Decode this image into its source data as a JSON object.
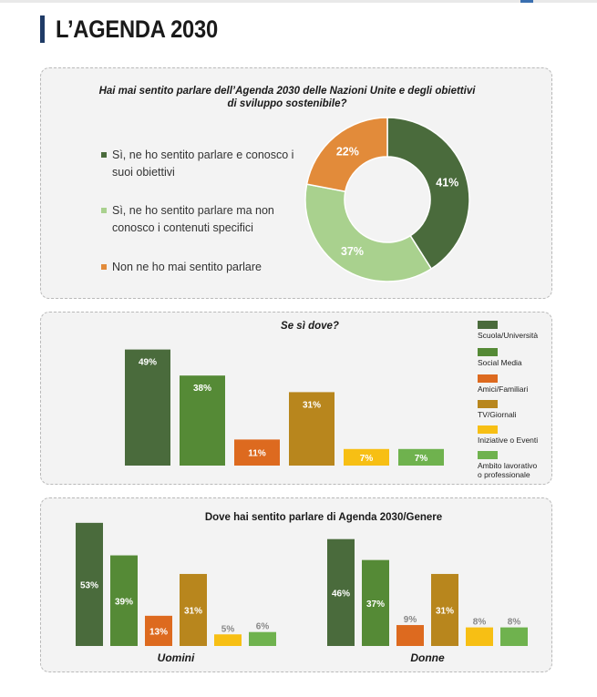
{
  "page_title": "L’AGENDA 2030",
  "colors": {
    "dark_green": "#4a6b3c",
    "green": "#558a36",
    "orange": "#dd6a1f",
    "gold": "#b8861d",
    "yellow": "#f7bf14",
    "light_green": "#6fb24e",
    "donut_dark": "#4a6b3c",
    "donut_light": "#a9d18e",
    "donut_orange": "#e28b3a"
  },
  "chart_data": [
    {
      "type": "pie",
      "title": "Hai mai sentito parlare dell’Agenda 2030 delle Nazioni Unite e degli obiettivi di sviluppo sostenibile?",
      "title_line1": "Hai mai sentito parlare dell’Agenda 2030 delle Nazioni Unite e degli obiettivi",
      "title_line2": "di sviluppo sostenibile?",
      "categories": [
        "Sì, ne ho sentito parlare e conosco i suoi obiettivi",
        "Sì, ne ho sentito parlare ma non conosco i contenuti specifici",
        "Non ne ho mai sentito parlare"
      ],
      "legend_lines": [
        [
          "Sì, ne ho sentito parlare e conosco i",
          "suoi obiettivi"
        ],
        [
          "Sì, ne ho sentito parlare ma non",
          "conosco i contenuti specifici"
        ],
        [
          "Non ne ho mai sentito parlare"
        ]
      ],
      "values": [
        41,
        37,
        22
      ],
      "labels": [
        "41%",
        "37%",
        "22%"
      ],
      "legend_placement": "left"
    },
    {
      "type": "bar",
      "title": "Se sì dove?",
      "categories": [
        "Scuola/Università",
        "Social Media",
        "Amici/Familiari",
        "TV/Giornali",
        "Iniziative o Eventi",
        "Ambito lavorativo o professionale"
      ],
      "legend_lines": [
        [
          "Scuola/Università"
        ],
        [
          "Social Media"
        ],
        [
          "Amici/Familiari"
        ],
        [
          "TV/Giornali"
        ],
        [
          "Iniziative o Eventi"
        ],
        [
          "Ambito lavorativo",
          "o professionale"
        ]
      ],
      "values": [
        49,
        38,
        11,
        31,
        7,
        7
      ],
      "labels": [
        "49%",
        "38%",
        "11%",
        "31%",
        "7%",
        "7%"
      ],
      "legend_placement": "right",
      "grid": false
    },
    {
      "type": "bar",
      "title": "Dove hai sentito parlare di Agenda 2030/Genere",
      "groups": [
        "Uomini",
        "Donne"
      ],
      "categories": [
        "Scuola/Università",
        "Social Media",
        "Amici/Familiari",
        "TV/Giornali",
        "Iniziative o Eventi",
        "Ambito lavorativo o professionale"
      ],
      "series": [
        {
          "name": "Uomini",
          "values": [
            53,
            39,
            13,
            31,
            5,
            6
          ],
          "labels": [
            "53%",
            "39%",
            "13%",
            "31%",
            "5%",
            "6%"
          ]
        },
        {
          "name": "Donne",
          "values": [
            46,
            37,
            9,
            31,
            8,
            8
          ],
          "labels": [
            "46%",
            "37%",
            "9%",
            "31%",
            "8%",
            "8%"
          ]
        }
      ],
      "grid": false
    }
  ]
}
